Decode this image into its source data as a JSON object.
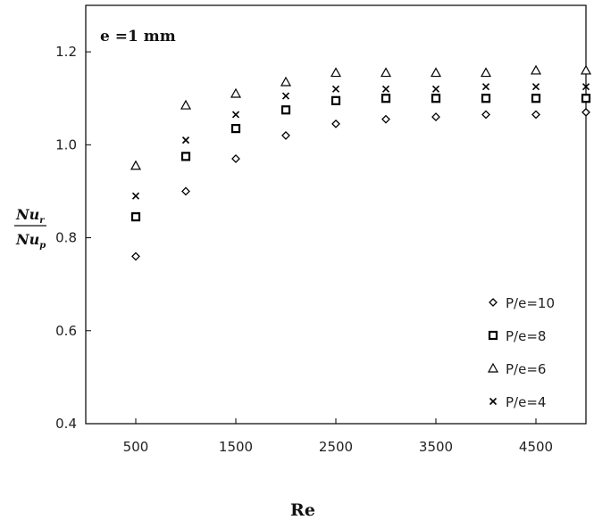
{
  "chart_data": {
    "type": "scatter",
    "annotation": "e =1 mm",
    "xlabel": "Re",
    "ylabel": {
      "numerator": "Nu",
      "numerator_sub": "r",
      "denominator": "Nu",
      "denominator_sub": "p"
    },
    "xlim": [
      0,
      5000
    ],
    "ylim": [
      0.4,
      1.3
    ],
    "xticks": [
      500,
      1500,
      2500,
      3500,
      4500
    ],
    "xtick_labels": [
      "500",
      "1500",
      "2500",
      "3500",
      "4500"
    ],
    "yticks": [
      0.4,
      0.6,
      0.8,
      1.0,
      1.2
    ],
    "ytick_labels": [
      "0.4",
      "0.6",
      "0.8",
      "1.0",
      "1.2"
    ],
    "grid": false,
    "legend_position": "bottom-right",
    "x": [
      500,
      1000,
      1500,
      2000,
      2500,
      3000,
      3500,
      4000,
      4500,
      5000
    ],
    "series": [
      {
        "name": "P/e=10",
        "marker": "diamond",
        "values": [
          0.76,
          0.9,
          0.97,
          1.02,
          1.045,
          1.055,
          1.06,
          1.065,
          1.065,
          1.07
        ]
      },
      {
        "name": "P/e=8",
        "marker": "square",
        "values": [
          0.845,
          0.975,
          1.035,
          1.075,
          1.095,
          1.1,
          1.1,
          1.1,
          1.1,
          1.1
        ]
      },
      {
        "name": "P/e=6",
        "marker": "triangle",
        "values": [
          0.955,
          1.085,
          1.11,
          1.135,
          1.155,
          1.155,
          1.155,
          1.155,
          1.16,
          1.16
        ]
      },
      {
        "name": "P/e=4",
        "marker": "x",
        "values": [
          0.89,
          1.01,
          1.065,
          1.105,
          1.12,
          1.12,
          1.12,
          1.125,
          1.125,
          1.125
        ]
      }
    ]
  }
}
